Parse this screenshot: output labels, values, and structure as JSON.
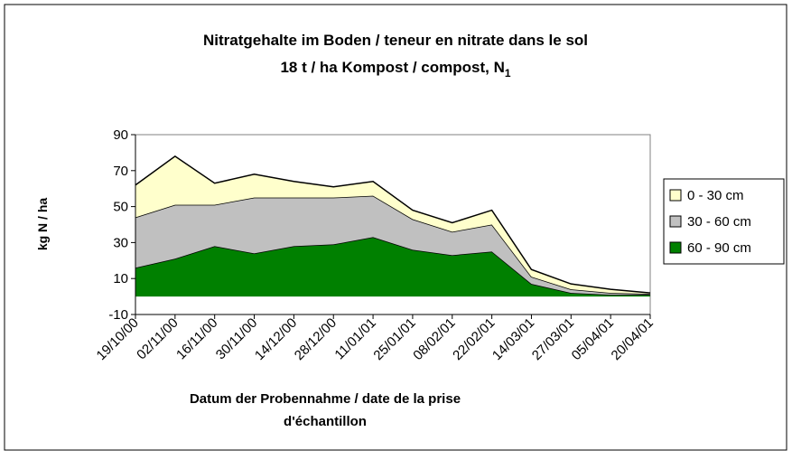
{
  "chart_data": {
    "type": "stacked_area",
    "title": "Nitratgehalte im Boden / teneur en nitrate dans le sol",
    "subtitle": "18 t / ha Kompost / compost, N",
    "subtitle_subscript": "1",
    "y_label": "kg N / ha",
    "x_label": [
      "Datum der Probennahme / date de la prise",
      "d'échantillon"
    ],
    "categories": [
      "19/10/00",
      "02/11/00",
      "16/11/00",
      "30/11/00",
      "14/12/00",
      "28/12/00",
      "11/01/01",
      "25/01/01",
      "08/02/01",
      "22/02/01",
      "14/03/01",
      "27/03/01",
      "05/04/01",
      "20/04/01"
    ],
    "series": [
      {
        "name": "60 - 90 cm",
        "color": "#008000",
        "values": [
          16,
          21,
          28,
          24,
          28,
          29,
          33,
          26,
          23,
          25,
          7,
          2,
          1,
          1
        ]
      },
      {
        "name": "30 - 60 cm",
        "color": "#c0c0c0",
        "values": [
          28,
          30,
          23,
          31,
          27,
          26,
          23,
          17,
          13,
          15,
          4,
          2,
          1,
          0.5
        ]
      },
      {
        "name": "0 - 30 cm",
        "color": "#ffffcc",
        "values": [
          18,
          27,
          12,
          13,
          9,
          6,
          8,
          5,
          5,
          8,
          4,
          3,
          2,
          0.5
        ]
      }
    ],
    "ylim": [
      -10,
      90
    ],
    "yticks": [
      -10,
      10,
      30,
      50,
      70,
      90
    ],
    "grid": false,
    "legend": "right"
  }
}
